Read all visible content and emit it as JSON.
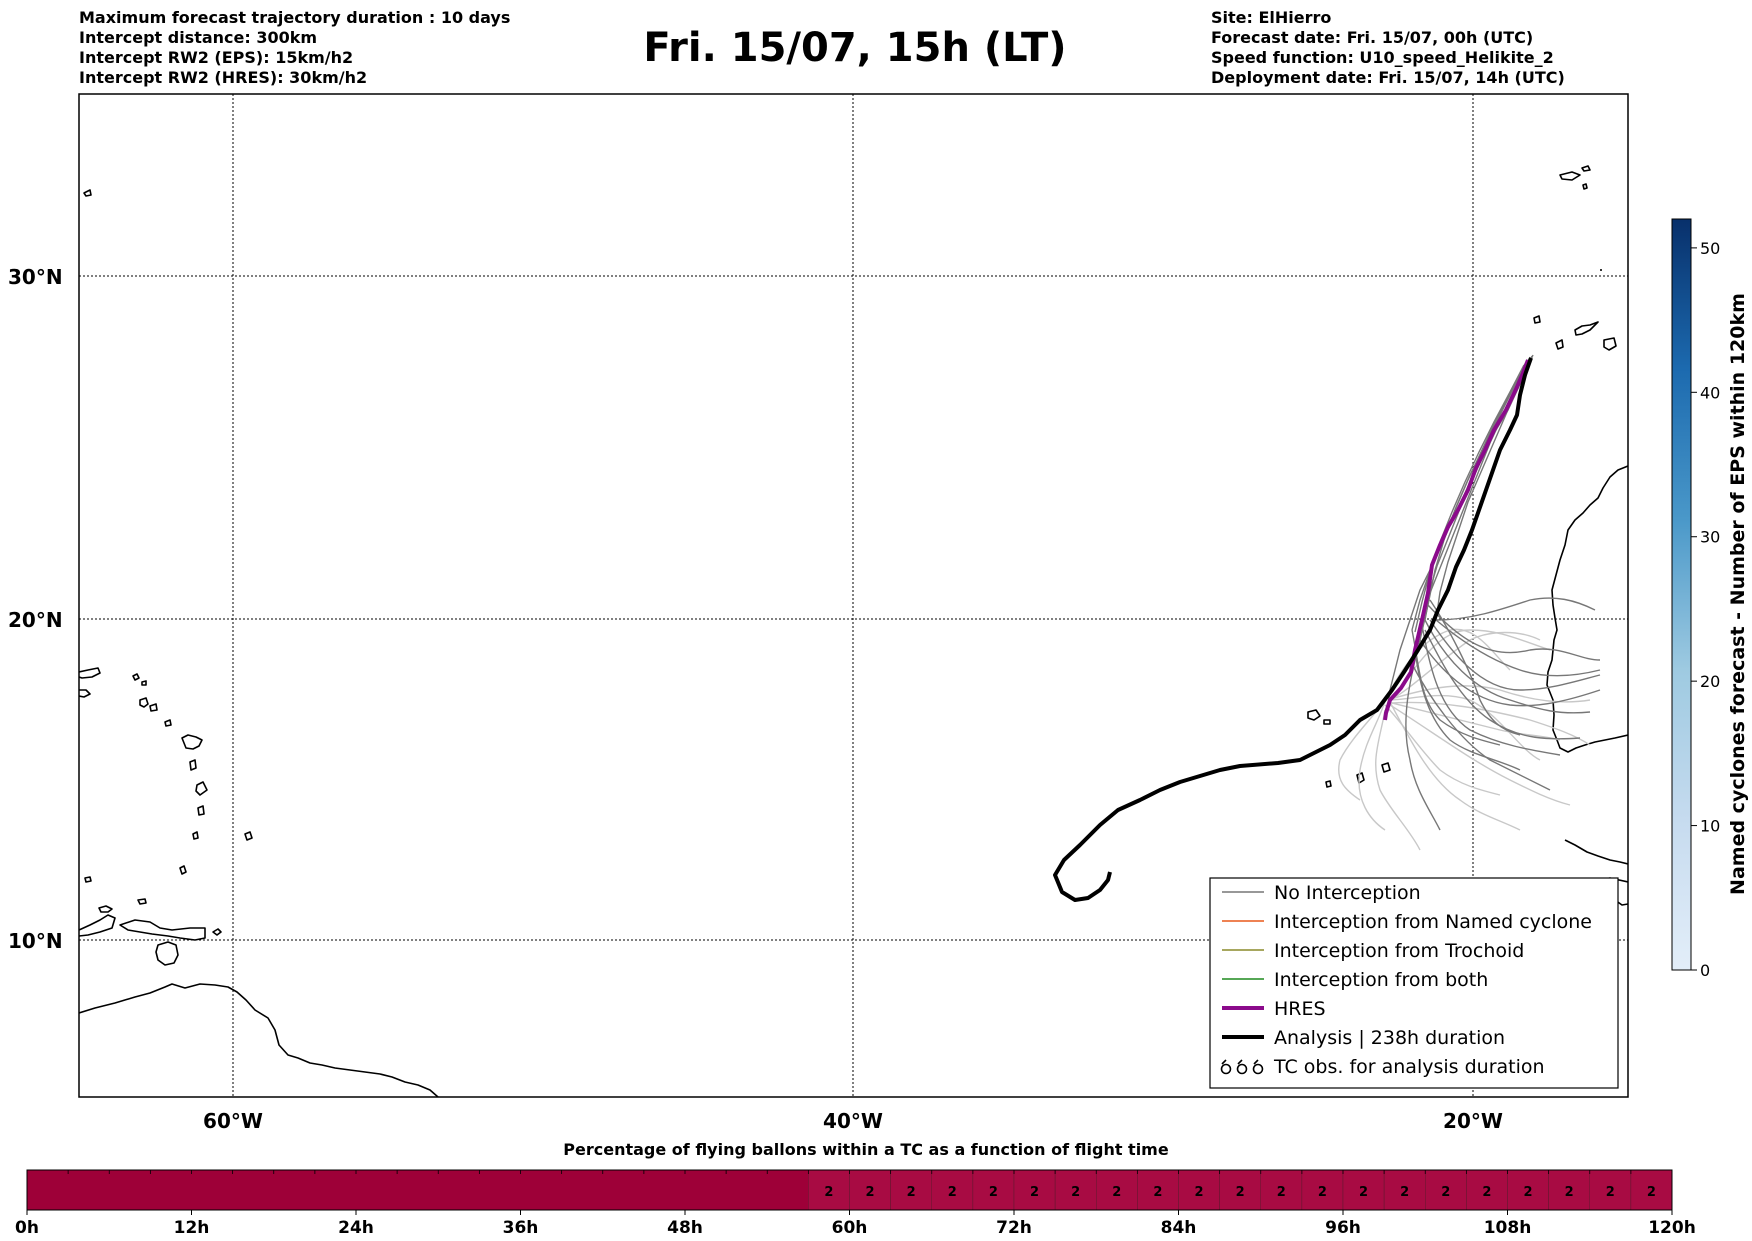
{
  "header": {
    "title": "Fri. 15/07, 15h (LT)",
    "left_lines": [
      "Maximum forecast trajectory duration : 10 days",
      "Intercept distance: 300km",
      "Intercept RW2 (EPS):  15km/h2",
      "Intercept RW2 (HRES): 30km/h2"
    ],
    "right_lines": [
      "Site: ElHierro",
      "Forecast date: Fri. 15/07, 00h (UTC)",
      "Speed function: U10_speed_Helikite_2",
      "Deployment date: Fri. 15/07, 14h (UTC)"
    ]
  },
  "map": {
    "lat_labels": [
      "30°N",
      "20°N",
      "10°N"
    ],
    "lon_labels": [
      "60°W",
      "40°W",
      "20°W"
    ]
  },
  "legend": {
    "items": [
      {
        "label": "No Interception",
        "color": "#777777",
        "width": 1.5
      },
      {
        "label": "Interception from Named cyclone",
        "color": "#e8591a",
        "width": 1.5
      },
      {
        "label": "Interception from Trochoid",
        "color": "#8a8a2a",
        "width": 1.5
      },
      {
        "label": "Interception from both",
        "color": "#1e8a1e",
        "width": 1.5
      },
      {
        "label": "HRES",
        "color": "#8b0a8b",
        "width": 4
      },
      {
        "label": "Analysis | 238h duration",
        "color": "#000000",
        "width": 4
      },
      {
        "label": "TC obs. for analysis duration",
        "icon": "tc-symbols-icon",
        "color": "#000000"
      }
    ]
  },
  "colorbar": {
    "label": "Named cyclones forecast - Number of EPS within 120km",
    "ticks": [
      "0",
      "10",
      "20",
      "30",
      "40",
      "50"
    ],
    "max": 52,
    "color_low": "#e3eef9",
    "color_high": "#08306b"
  },
  "timebar": {
    "title": "Percentage of flying ballons within a TC as a function of flight time",
    "tick_labels": [
      "0h",
      "12h",
      "24h",
      "36h",
      "48h",
      "60h",
      "72h",
      "84h",
      "96h",
      "108h",
      "120h"
    ],
    "cell_value": "2",
    "first_value_hour": 57,
    "color_zero": "#9e0038",
    "color_filled": "#a80b43"
  }
}
